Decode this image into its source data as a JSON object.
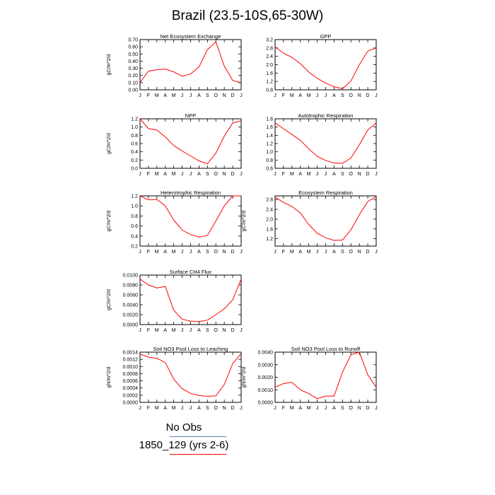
{
  "page": {
    "title": "Brazil (23.5-10S,65-30W)"
  },
  "legend": {
    "obs_label": "No Obs",
    "model_label": "1850_129 (yrs 2-6)",
    "obs_color": "#5b79b5",
    "model_color": "#ff0000"
  },
  "chart_data": [
    {
      "type": "line",
      "title": "Net Ecosystem Exchange",
      "ylabel": "gC/m^2/d",
      "categories": [
        "J",
        "F",
        "M",
        "A",
        "M",
        "J",
        "J",
        "A",
        "S",
        "O",
        "N",
        "D",
        "J"
      ],
      "yticks": [
        "0.00",
        "0.10",
        "0.20",
        "0.30",
        "0.40",
        "0.50",
        "0.60",
        "0.70"
      ],
      "ylim": [
        0,
        0.7
      ],
      "series": [
        {
          "values": [
            0.1,
            0.26,
            0.28,
            0.29,
            0.25,
            0.19,
            0.22,
            0.32,
            0.56,
            0.67,
            0.33,
            0.13,
            0.1
          ],
          "color": "#ff0000"
        }
      ]
    },
    {
      "type": "line",
      "title": "GPP",
      "ylabel": "",
      "categories": [
        "J",
        "F",
        "M",
        "A",
        "M",
        "J",
        "J",
        "A",
        "S",
        "O",
        "N",
        "D",
        "J"
      ],
      "yticks": [
        "0.8",
        "1.2",
        "1.6",
        "2.0",
        "2.4",
        "2.8",
        "3.2"
      ],
      "ylim": [
        0.8,
        3.2
      ],
      "series": [
        {
          "values": [
            2.85,
            2.55,
            2.35,
            2.05,
            1.65,
            1.35,
            1.12,
            0.95,
            0.85,
            1.22,
            2.0,
            2.65,
            2.8
          ],
          "color": "#ff0000"
        }
      ]
    },
    {
      "type": "line",
      "title": "NPP",
      "ylabel": "gC/m^2/d",
      "categories": [
        "J",
        "F",
        "M",
        "A",
        "M",
        "J",
        "J",
        "A",
        "S",
        "O",
        "N",
        "D",
        "J"
      ],
      "yticks": [
        "0.0",
        "0.2",
        "0.4",
        "0.6",
        "0.8",
        "1.0",
        "1.2"
      ],
      "ylim": [
        0,
        1.2
      ],
      "series": [
        {
          "values": [
            1.2,
            0.96,
            0.93,
            0.76,
            0.55,
            0.42,
            0.3,
            0.18,
            0.11,
            0.37,
            0.78,
            1.1,
            1.15
          ],
          "color": "#ff0000"
        }
      ]
    },
    {
      "type": "line",
      "title": "Autotrophic Respiration",
      "ylabel": "",
      "categories": [
        "J",
        "F",
        "M",
        "A",
        "M",
        "J",
        "J",
        "A",
        "S",
        "O",
        "N",
        "D",
        "J"
      ],
      "yticks": [
        "0.6",
        "0.8",
        "1.0",
        "1.2",
        "1.4",
        "1.6",
        "1.8"
      ],
      "ylim": [
        0.6,
        1.8
      ],
      "series": [
        {
          "values": [
            1.7,
            1.56,
            1.42,
            1.28,
            1.07,
            0.89,
            0.79,
            0.73,
            0.72,
            0.85,
            1.17,
            1.53,
            1.7
          ],
          "color": "#ff0000"
        }
      ]
    },
    {
      "type": "line",
      "title": "Heterotrophic Respiration",
      "ylabel": "gC/m^2/d",
      "categories": [
        "J",
        "F",
        "M",
        "A",
        "M",
        "J",
        "J",
        "A",
        "S",
        "O",
        "N",
        "D",
        "J"
      ],
      "yticks": [
        "0.2",
        "0.4",
        "0.6",
        "0.8",
        "1.0",
        "1.2"
      ],
      "ylim": [
        0.2,
        1.2
      ],
      "series": [
        {
          "values": [
            1.2,
            1.12,
            1.13,
            1.0,
            0.72,
            0.52,
            0.43,
            0.38,
            0.41,
            0.7,
            1.0,
            1.2,
            1.2
          ],
          "color": "#ff0000"
        }
      ]
    },
    {
      "type": "line",
      "title": "Ecosystem Respiration",
      "ylabel": "gC/m^2/d",
      "categories": [
        "J",
        "F",
        "M",
        "A",
        "M",
        "J",
        "J",
        "A",
        "S",
        "O",
        "N",
        "D",
        "J"
      ],
      "yticks": [
        "1.2",
        "1.6",
        "2.0",
        "2.4",
        "2.8"
      ],
      "ylim": [
        0.9,
        2.95
      ],
      "series": [
        {
          "values": [
            2.9,
            2.68,
            2.52,
            2.25,
            1.78,
            1.42,
            1.24,
            1.13,
            1.15,
            1.56,
            2.18,
            2.72,
            2.92
          ],
          "color": "#ff0000"
        }
      ]
    },
    {
      "type": "line",
      "title": "Surface CH4 Flux",
      "ylabel": "gC/m^2/d",
      "categories": [
        "J",
        "F",
        "M",
        "A",
        "M",
        "J",
        "J",
        "A",
        "S",
        "O",
        "N",
        "D",
        "J"
      ],
      "yticks": [
        "0.0000",
        "0.0020",
        "0.0040",
        "0.0060",
        "0.0080",
        "0.0100"
      ],
      "ylim": [
        0,
        0.01
      ],
      "series": [
        {
          "values": [
            0.0092,
            0.008,
            0.0074,
            0.0077,
            0.0029,
            0.0011,
            0.0007,
            0.0006,
            0.0009,
            0.002,
            0.0032,
            0.005,
            0.0092
          ],
          "color": "#ff0000"
        }
      ]
    },
    {
      "type": "line",
      "title": "Soil NO3 Pool Loss to Leaching",
      "ylabel": "gN/m^2/d",
      "categories": [
        "J",
        "F",
        "M",
        "A",
        "M",
        "J",
        "J",
        "A",
        "S",
        "O",
        "N",
        "D",
        "J"
      ],
      "yticks": [
        "0.0000",
        "0.0002",
        "0.0004",
        "0.0006",
        "0.0008",
        "0.0010",
        "0.0012",
        "0.0014"
      ],
      "ylim": [
        0,
        0.0014
      ],
      "series": [
        {
          "values": [
            0.00135,
            0.00126,
            0.00123,
            0.00111,
            0.00065,
            0.00038,
            0.00025,
            0.00019,
            0.00017,
            0.00018,
            0.0005,
            0.00108,
            0.00136
          ],
          "color": "#ff0000"
        }
      ]
    },
    {
      "type": "line",
      "title": "Soil NO3 Pool Loss to Runoff",
      "ylabel": "gN/m^2/d",
      "categories": [
        "J",
        "F",
        "M",
        "A",
        "M",
        "J",
        "J",
        "A",
        "S",
        "O",
        "N",
        "D",
        "J"
      ],
      "yticks": [
        "0.0000",
        "0.0010",
        "0.0020",
        "0.0030",
        "0.0040"
      ],
      "ylim": [
        0,
        0.004
      ],
      "series": [
        {
          "values": [
            0.0012,
            0.0015,
            0.0016,
            0.001,
            0.0007,
            0.0003,
            0.0005,
            0.0005,
            0.0024,
            0.0038,
            0.004,
            0.0022,
            0.0012
          ],
          "color": "#ff0000"
        }
      ]
    }
  ]
}
